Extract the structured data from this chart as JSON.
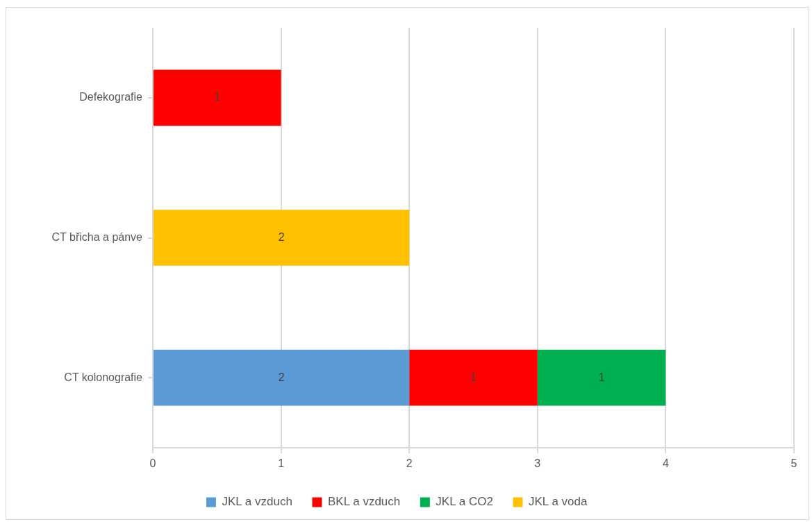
{
  "chart_data": {
    "type": "bar",
    "orientation": "horizontal",
    "stacked": true,
    "categories": [
      "Defekografie",
      "CT břicha a pánve",
      "CT kolonografie"
    ],
    "series": [
      {
        "name": "JKL a vzduch",
        "color": "#5b9bd5",
        "values": [
          null,
          null,
          2
        ]
      },
      {
        "name": "BKL a vzduch",
        "color": "#ff0000",
        "values": [
          1,
          null,
          1
        ]
      },
      {
        "name": "JKL a CO2",
        "color": "#00b050",
        "values": [
          null,
          null,
          1
        ]
      },
      {
        "name": "JKL a voda",
        "color": "#ffc000",
        "values": [
          null,
          2,
          null
        ]
      }
    ],
    "xlim": [
      0,
      5
    ],
    "xticks": [
      0,
      1,
      2,
      3,
      4,
      5
    ],
    "grid": "x",
    "legend": "bottom",
    "data_labels": true
  }
}
